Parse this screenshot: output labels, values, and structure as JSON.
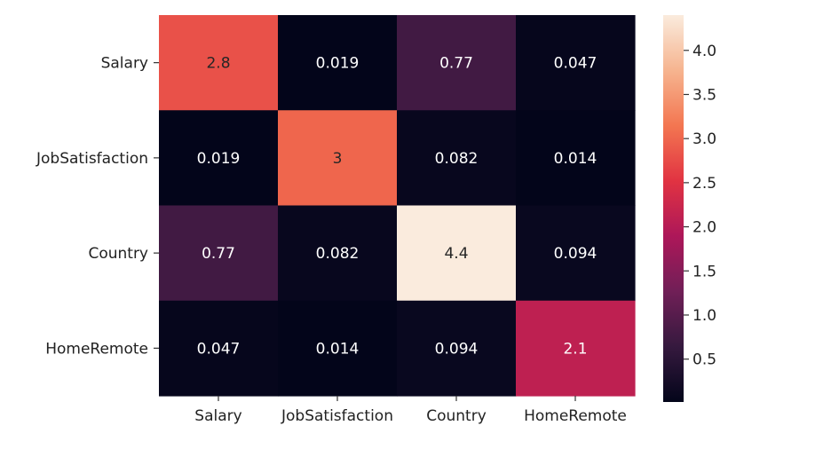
{
  "chart_data": {
    "type": "heatmap",
    "title": "",
    "xlabel": "",
    "ylabel": "",
    "x_categories": [
      "Salary",
      "JobSatisfaction",
      "Country",
      "HomeRemote"
    ],
    "y_categories": [
      "Salary",
      "JobSatisfaction",
      "Country",
      "HomeRemote"
    ],
    "values": [
      [
        2.8,
        0.019,
        0.77,
        0.047
      ],
      [
        0.019,
        3,
        0.082,
        0.014
      ],
      [
        0.77,
        0.082,
        4.4,
        0.094
      ],
      [
        0.047,
        0.014,
        0.094,
        2.1
      ]
    ],
    "cell_labels": [
      [
        "2.8",
        "0.019",
        "0.77",
        "0.047"
      ],
      [
        "0.019",
        "3",
        "0.082",
        "0.014"
      ],
      [
        "0.77",
        "0.082",
        "4.4",
        "0.094"
      ],
      [
        "0.047",
        "0.014",
        "0.094",
        "2.1"
      ]
    ],
    "colorbar": {
      "min": 0.014,
      "max": 4.4,
      "ticks": [
        0.5,
        1.0,
        1.5,
        2.0,
        2.5,
        3.0,
        3.5,
        4.0
      ],
      "tick_labels": [
        "0.5",
        "1.0",
        "1.5",
        "2.0",
        "2.5",
        "3.0",
        "3.5",
        "4.0"
      ]
    },
    "colormap": "rocket",
    "colormap_stops": [
      "#03051a",
      "#35193e",
      "#701f57",
      "#ad1759",
      "#e13342",
      "#f37651",
      "#f6b48f",
      "#faebdd"
    ],
    "annotation_colors": {
      "light": "#ffffff",
      "dark": "#262626"
    }
  }
}
